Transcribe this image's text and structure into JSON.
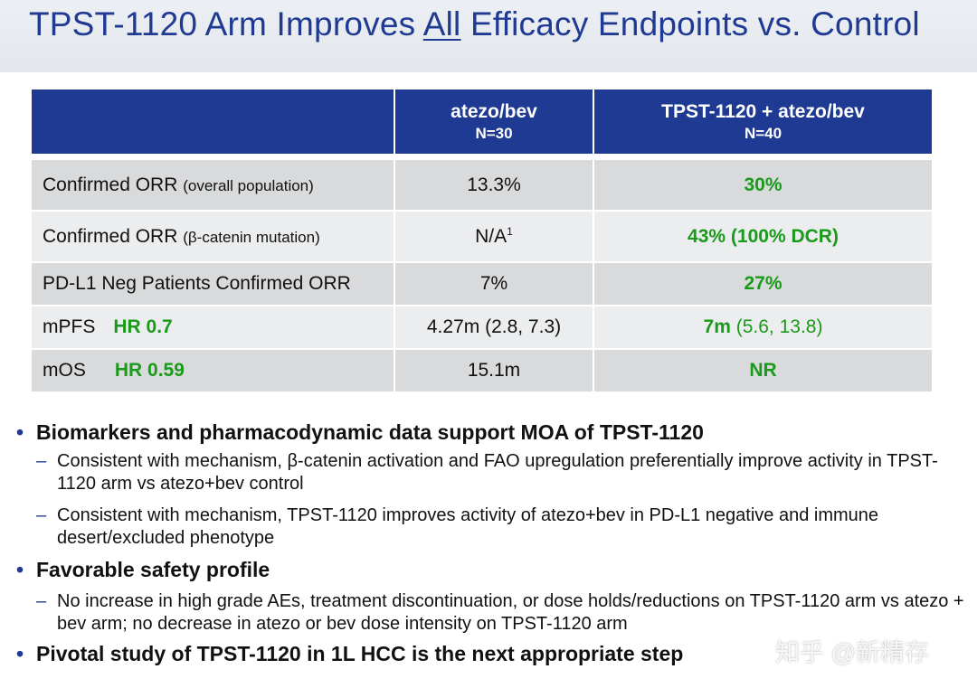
{
  "title": {
    "pre": "TPST-1120 Arm Improves ",
    "underlined": "All",
    "post": " Efficacy Endpoints vs. Control"
  },
  "table": {
    "headers": [
      {
        "line1": "",
        "line2": ""
      },
      {
        "line1": "atezo/bev",
        "line2": "N=30"
      },
      {
        "line1": "TPST-1120 + atezo/bev",
        "line2": "N=40"
      }
    ],
    "rows": [
      {
        "label": "Confirmed ORR",
        "label_note": "(overall population)",
        "control": "13.3%",
        "tpst": "30%"
      },
      {
        "label": "Confirmed ORR",
        "label_note": "(β-catenin mutation)",
        "control": "N/A",
        "control_sup": "1",
        "tpst": "43% (100% DCR)"
      },
      {
        "label": "PD-L1 Neg Patients Confirmed ORR",
        "control": "7%",
        "tpst": "27%"
      },
      {
        "label": "mPFS",
        "hr": "HR 0.7",
        "control": "4.27m (2.8, 7.3)",
        "tpst": "7m",
        "tpst_ci": "(5.6, 13.8)"
      },
      {
        "label": "mOS",
        "hr": "HR 0.59",
        "control": "15.1m",
        "tpst": "NR"
      }
    ]
  },
  "bullets": [
    {
      "text": "Biomarkers and pharmacodynamic data support MOA of TPST-1120",
      "subs": [
        "Consistent with mechanism, β-catenin activation and FAO upregulation preferentially improve activity in TPST-1120 arm vs atezo+bev control",
        "Consistent with mechanism, TPST-1120 improves activity of atezo+bev in PD-L1 negative and immune desert/excluded phenotype"
      ]
    },
    {
      "text": "Favorable safety profile",
      "subs": [
        "No increase in high grade AEs, treatment discontinuation, or dose holds/reductions on TPST-1120 arm vs atezo + bev arm; no decrease in atezo or bev dose intensity on TPST-1120 arm"
      ]
    },
    {
      "text": "Pivotal study of TPST-1120 in 1L HCC is the next appropriate step",
      "subs": []
    }
  ],
  "watermark": "知乎 @新精存",
  "colors": {
    "navy": "#1f3a93",
    "green": "#1a9a1a",
    "row_dark": "#d9dadc",
    "row_light": "#ecedee"
  }
}
